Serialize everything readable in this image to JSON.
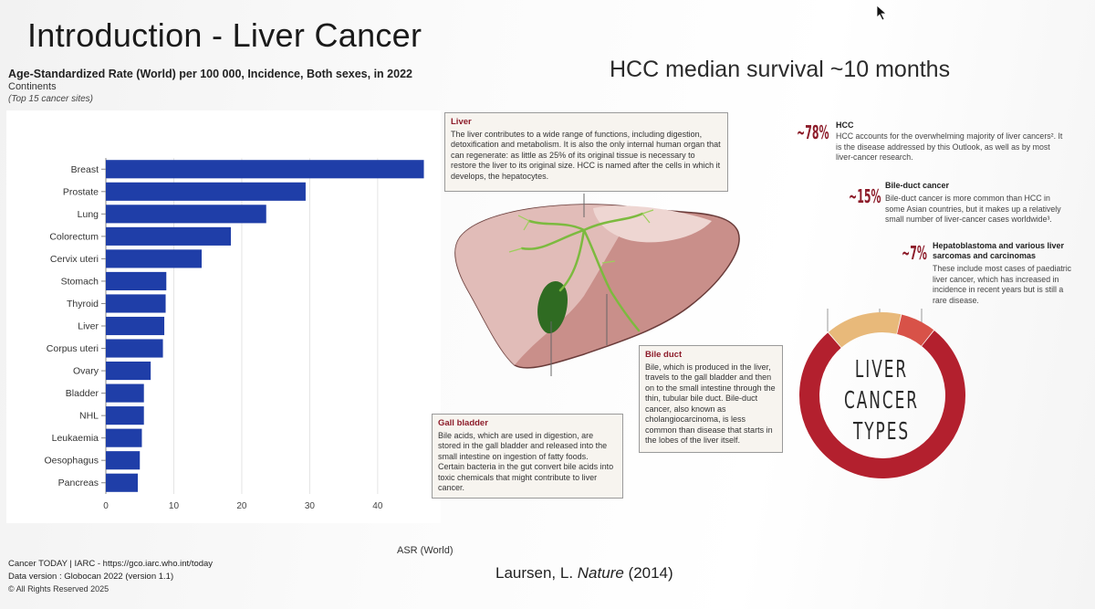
{
  "slide": {
    "title": "Introduction - Liver Cancer",
    "subtitle_right": "HCC median survival ~10 months",
    "citation_author": "Laursen, L. ",
    "citation_journal": "Nature",
    "citation_year": " (2014)"
  },
  "chart_data": {
    "type": "bar",
    "orientation": "horizontal",
    "title": "Age-Standardized Rate (World) per 100 000, Incidence, Both sexes, in 2022",
    "subtitle": "Continents",
    "subtitle2": "(Top 15 cancer sites)",
    "xlabel": "ASR (World)",
    "ylabel": "",
    "xlim": [
      0,
      47
    ],
    "xticks": [
      0,
      10,
      20,
      30,
      40
    ],
    "grid": true,
    "bar_color": "#1f3ea8",
    "categories": [
      "Breast",
      "Prostate",
      "Lung",
      "Colorectum",
      "Cervix uteri",
      "Stomach",
      "Thyroid",
      "Liver",
      "Corpus uteri",
      "Ovary",
      "Bladder",
      "NHL",
      "Leukaemia",
      "Oesophagus",
      "Pancreas"
    ],
    "values": [
      46.8,
      29.4,
      23.6,
      18.4,
      14.1,
      8.9,
      8.8,
      8.6,
      8.4,
      6.6,
      5.6,
      5.6,
      5.3,
      5.0,
      4.7
    ]
  },
  "footer": {
    "source": "Cancer TODAY | IARC - https://gco.iarc.who.int/today",
    "data_version": "Data version : Globocan 2022 (version 1.1)",
    "rights": "© All Rights Reserved 2025"
  },
  "illustration": {
    "liver": {
      "head": "Liver",
      "text": "The liver contributes to a wide range of functions, including digestion, detoxification and metabolism. It is also the only internal human organ that can regenerate: as little as 25% of its original tissue is necessary to restore the liver to its original size. HCC is named after the cells in which it develops, the hepatocytes."
    },
    "bile_duct": {
      "head": "Bile duct",
      "text": "Bile, which is produced in the liver, travels to the gall bladder and then on to the small intestine through the thin, tubular bile duct. Bile-duct cancer, also known as cholangiocarcinoma, is less common than disease that starts in the lobes of the liver itself."
    },
    "gall_bladder": {
      "head": "Gall bladder",
      "text": "Bile acids, which are used in digestion, are stored in the gall bladder and released into the small intestine on ingestion of fatty foods. Certain bacteria in the gut convert bile acids into toxic chemicals that might contribute to liver cancer."
    }
  },
  "cancer_types": {
    "hcc": {
      "pct": "~78%",
      "share": 78,
      "head": "HCC",
      "text": "HCC accounts for the overwhelming majority of liver cancers². It is the disease addressed by this Outlook, as well as by most liver-cancer research."
    },
    "bile": {
      "pct": "~15%",
      "share": 15,
      "head": "Bile-duct cancer",
      "text": "Bile-duct cancer is more common than HCC in some Asian countries, but it makes up a relatively small number of liver-cancer cases worldwide³."
    },
    "hep": {
      "pct": "~7%",
      "share": 7,
      "head": "Hepatoblastoma and various liver sarcomas and carcinomas",
      "text": "These include most cases of paediatric liver cancer, which has increased in incidence in recent years but is still a rare disease."
    },
    "donut_words": [
      "LIVER",
      "CANCER",
      "TYPES"
    ],
    "colors": {
      "hcc": "#b3202e",
      "bile": "#e8b97a",
      "hep": "#d85248"
    }
  }
}
